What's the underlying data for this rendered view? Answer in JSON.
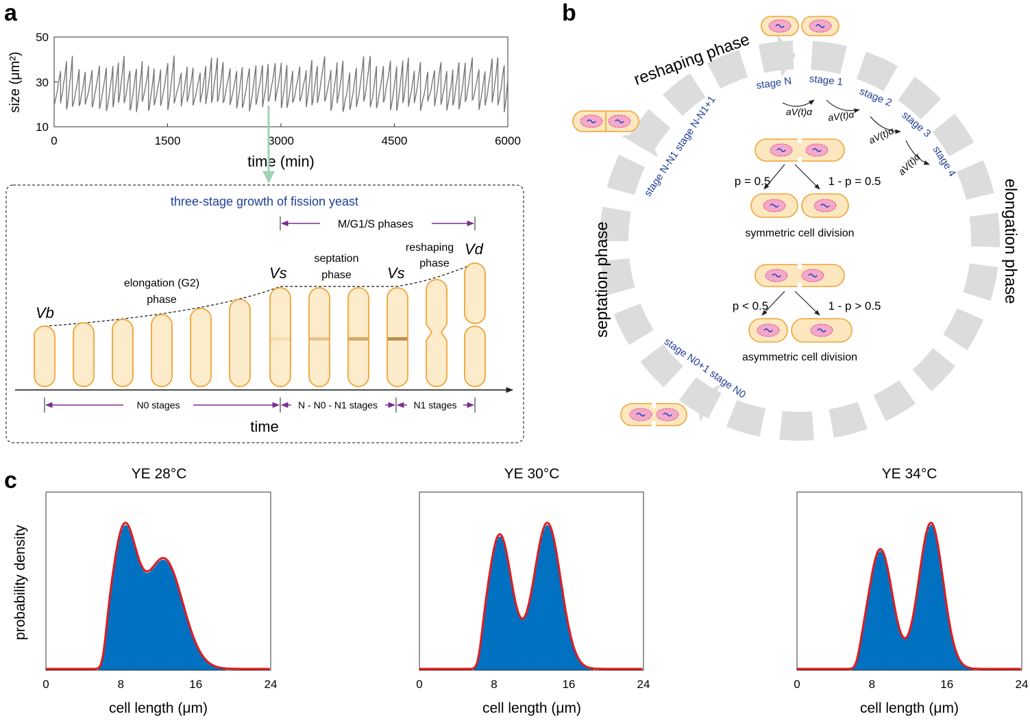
{
  "panel_a": {
    "label": "a",
    "ts": {
      "ylabel": "size (μm²)",
      "xlabel": "time (min)",
      "xticks": [
        "0",
        "1500",
        "3000",
        "4500",
        "6000"
      ],
      "yticks": [
        "10",
        "30",
        "50"
      ]
    },
    "schematic": {
      "title": "three-stage growth of fission yeast",
      "mgs_label": "M/G1/S phases",
      "vb": "Vb",
      "vs1": "Vs",
      "vs2": "Vs",
      "vd": "Vd",
      "elong_label1": "elongation (G2)",
      "elong_label2": "phase",
      "sept_label1": "septation",
      "sept_label2": "phase",
      "reshape_label1": "reshaping",
      "reshape_label2": "phase",
      "n0_label": "N0 stages",
      "mid_label": "N - N0 - N1 stages",
      "n1_label": "N1 stages",
      "time_label": "time"
    }
  },
  "panel_b": {
    "label": "b",
    "reshaping_phase": "reshaping phase",
    "elongation_phase": "elongation phase",
    "septation_phase": "septation phase",
    "stage_n": "stage N",
    "stage_1": "stage 1",
    "stage_2": "stage 2",
    "stage_3": "stage 3",
    "stage_4": "stage 4",
    "stage_upper_left": "stage N-N1 stage N-N1+1",
    "stage_lower_left": "stage N0+1 stage N0",
    "rate": "aV(t)α",
    "sym_p": "p = 0.5",
    "sym_q": "1 - p = 0.5",
    "sym_label": "symmetric cell division",
    "asym_p": "p < 0.5",
    "asym_q": "1 - p > 0.5",
    "asym_label": "asymmetric cell division"
  },
  "panel_c": {
    "label": "c",
    "ylabel": "probability density",
    "xlabel": "cell length (μm)",
    "xticks": [
      "0",
      "8",
      "16",
      "24"
    ]
  },
  "chart_data": [
    {
      "type": "line",
      "title": "",
      "xlabel": "time (min)",
      "ylabel": "size (μm²)",
      "xlim": [
        0,
        6000
      ],
      "ylim": [
        10,
        50
      ],
      "series": [
        {
          "cycle_min": 85,
          "y_min": 17,
          "y_max": 38
        }
      ]
    },
    {
      "type": "bar",
      "title": "YE 28°C",
      "xlabel": "cell length (μm)",
      "ylabel": "probability density",
      "xlim": [
        0,
        24
      ],
      "peaks": [
        {
          "x": 8.3,
          "h": 1.0,
          "w": 1.35
        },
        {
          "x": 12.6,
          "h": 0.82,
          "w": 2.0
        }
      ],
      "onset": 6.2,
      "color_bars": "#0070c0",
      "color_fit": "#e41a1c"
    },
    {
      "type": "bar",
      "title": "YE 30°C",
      "xlabel": "cell length (μm)",
      "ylabel": "probability density",
      "xlim": [
        0,
        24
      ],
      "peaks": [
        {
          "x": 8.6,
          "h": 0.92,
          "w": 1.3
        },
        {
          "x": 13.7,
          "h": 1.0,
          "w": 1.45
        }
      ],
      "onset": 6.4,
      "color_bars": "#0070c0",
      "color_fit": "#e41a1c"
    },
    {
      "type": "bar",
      "title": "YE 34°C",
      "xlabel": "cell length (μm)",
      "ylabel": "probability density",
      "xlim": [
        0,
        24
      ],
      "peaks": [
        {
          "x": 8.9,
          "h": 0.82,
          "w": 1.3
        },
        {
          "x": 14.3,
          "h": 1.0,
          "w": 1.3
        }
      ],
      "onset": 6.4,
      "color_bars": "#0070c0",
      "color_fit": "#e41a1c"
    }
  ]
}
